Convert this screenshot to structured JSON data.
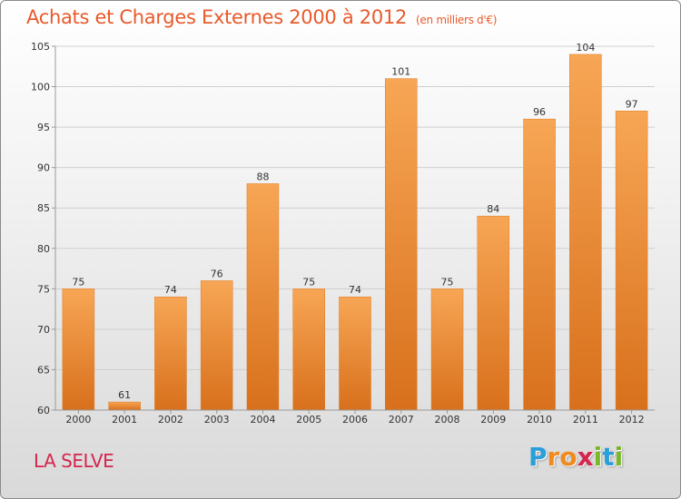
{
  "title": "Achats et Charges Externes 2000 à 2012",
  "unit": "(en milliers d'€)",
  "commune": "LA SELVE",
  "logo": {
    "letters": [
      "P",
      "r",
      "o",
      "x",
      "i",
      "t",
      "i"
    ],
    "colors": [
      "#2a9fd8",
      "#f08a1e",
      "#f08a1e",
      "#d4264e",
      "#7ab829",
      "#2a9fd8",
      "#7ab829"
    ]
  },
  "colors": {
    "title": "#e85a2a",
    "commune": "#d4264e",
    "bar_top": "#f7a655",
    "bar_bottom": "#d8701c",
    "grid": "#cfcfcf",
    "text": "#333333"
  },
  "chart_data": {
    "type": "bar",
    "categories": [
      "2000",
      "2001",
      "2002",
      "2003",
      "2004",
      "2005",
      "2006",
      "2007",
      "2008",
      "2009",
      "2010",
      "2011",
      "2012"
    ],
    "values": [
      75,
      61,
      74,
      76,
      88,
      75,
      74,
      101,
      75,
      84,
      96,
      104,
      97
    ],
    "ylim": [
      60,
      105
    ],
    "yticks": [
      60,
      65,
      70,
      75,
      80,
      85,
      90,
      95,
      100,
      105
    ],
    "grid": true,
    "data_labels": true
  }
}
